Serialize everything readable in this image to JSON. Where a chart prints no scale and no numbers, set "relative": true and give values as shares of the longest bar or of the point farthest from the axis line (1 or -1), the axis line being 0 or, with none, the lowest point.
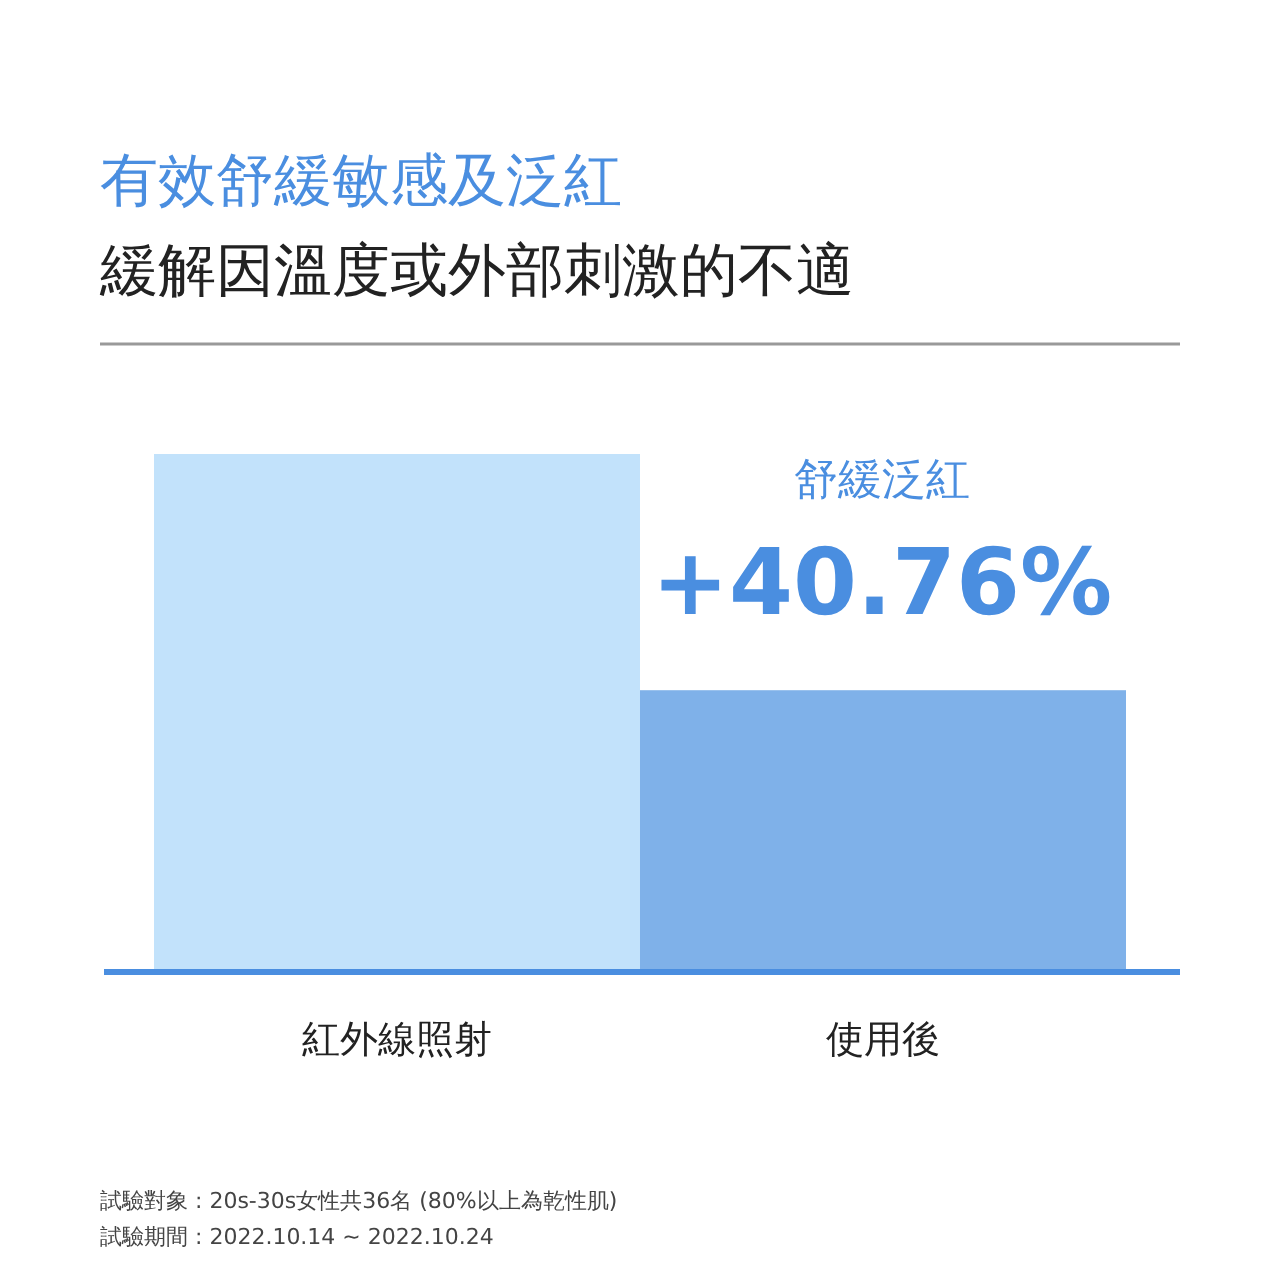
{
  "chart_data": {
    "type": "bar",
    "relative": true,
    "title": "有效舒緩敏感及泛紅",
    "subtitle": "緩解因溫度或外部刺激的不適",
    "categories": [
      "紅外線照射",
      "使用後"
    ],
    "values": [
      1,
      0.544
    ],
    "colors": [
      "#c2e2fb",
      "#7fb1e9"
    ],
    "annotations": [
      "舒緩泛紅",
      "+40.76%",
      "試驗對象 : 20s-30s女性共36名 (80%以上為乾性肌)",
      "試驗期間 : 2022.10.14 ~ 2022.10.24"
    ],
    "data_labels": false
  }
}
